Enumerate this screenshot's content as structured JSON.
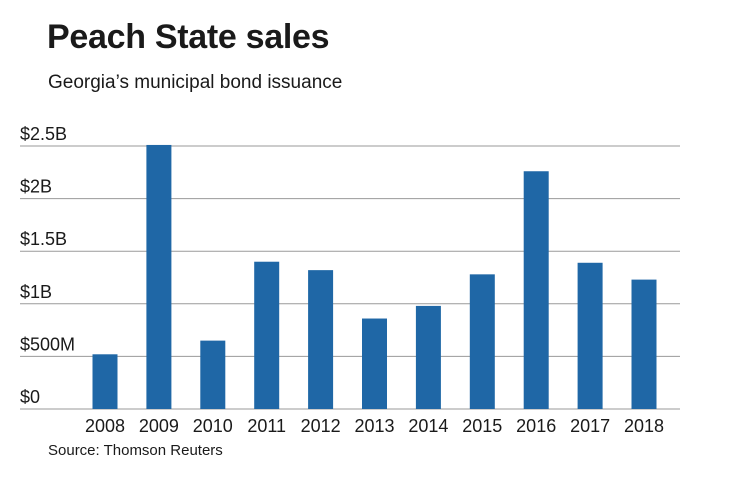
{
  "header": {
    "title": "Peach State sales",
    "subtitle": "Georgia’s municipal bond issuance"
  },
  "footer": {
    "source": "Source: Thomson Reuters"
  },
  "colors": {
    "bar": "#1f67a6",
    "grid": "#9a9a9a",
    "text": "#1a1a1a"
  },
  "chart_data": {
    "type": "bar",
    "categories": [
      "2008",
      "2009",
      "2010",
      "2011",
      "2012",
      "2013",
      "2014",
      "2015",
      "2016",
      "2017",
      "2018"
    ],
    "values": [
      0.52,
      2.51,
      0.65,
      1.4,
      1.32,
      0.86,
      0.98,
      1.28,
      2.26,
      1.39,
      1.23
    ],
    "unit": "billions USD",
    "ylim": [
      0,
      2.5
    ],
    "ytick_values": [
      0,
      0.5,
      1,
      1.5,
      2,
      2.5
    ],
    "ytick_labels": [
      "$0",
      "$500M",
      "$1B",
      "$1.5B",
      "$2B",
      "$2.5B"
    ],
    "grid": true
  }
}
